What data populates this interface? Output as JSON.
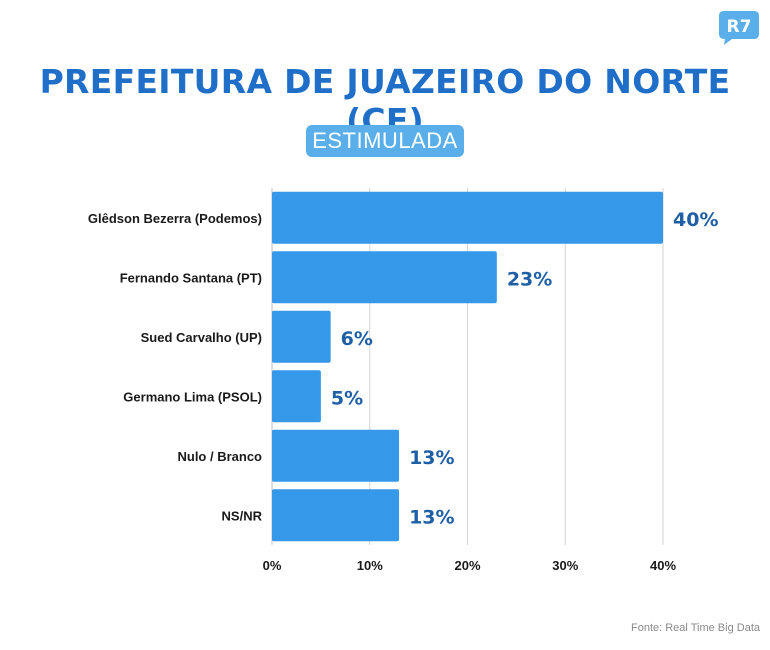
{
  "brand": {
    "logo_text": "R7",
    "logo_color": "#5aaee9"
  },
  "header": {
    "title": "PREFEITURA DE JUAZEIRO DO NORTE (CE)",
    "subtitle": "ESTIMULADA"
  },
  "source": "Fonte: Real Time Big Data",
  "colors": {
    "bar": "#3598e8",
    "value_label": "#1f5fa6",
    "title": "#1f6fc8",
    "grid": "#d3d3d3"
  },
  "chart_data": {
    "type": "bar",
    "orientation": "horizontal",
    "categories": [
      "Glêdson Bezerra (Podemos)",
      "Fernando Santana (PT)",
      "Sued Carvalho (UP)",
      "Germano Lima (PSOL)",
      "Nulo / Branco",
      "NS/NR"
    ],
    "values": [
      40,
      23,
      6,
      5,
      13,
      13
    ],
    "value_labels": [
      "40%",
      "23%",
      "6%",
      "5%",
      "13%",
      "13%"
    ],
    "xlim": [
      0,
      40
    ],
    "xticks": [
      0,
      10,
      20,
      30,
      40
    ],
    "xtick_labels": [
      "0%",
      "10%",
      "20%",
      "30%",
      "40%"
    ],
    "grid": true
  }
}
